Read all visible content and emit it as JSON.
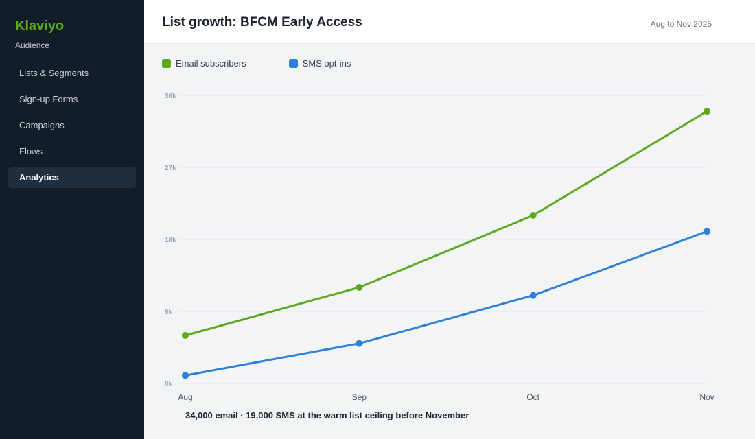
{
  "sidebar": {
    "brand": "Klaviyo",
    "subtitle": "Audience",
    "items": [
      {
        "label": "Lists & Segments",
        "active": false
      },
      {
        "label": "Sign-up Forms",
        "active": false
      },
      {
        "label": "Campaigns",
        "active": false
      },
      {
        "label": "Flows",
        "active": false
      },
      {
        "label": "Analytics",
        "active": true
      }
    ]
  },
  "header": {
    "title": "List growth: BFCM Early Access",
    "range": "Aug to Nov 2025"
  },
  "note": "34,000 email  ·  19,000 SMS at the warm list ceiling before November",
  "colors": {
    "email": "#5ca81e",
    "sms": "#2f7fd6",
    "grid": "#e3e6ea",
    "tick": "#9aa3af"
  },
  "chart_data": {
    "type": "line",
    "title": "List growth: BFCM Early Access",
    "categories": [
      "Aug",
      "Sep",
      "Oct",
      "Nov"
    ],
    "ylim": [
      0,
      36000
    ],
    "yticks": [
      0,
      9000,
      18000,
      27000,
      36000
    ],
    "ytick_labels": [
      "0k",
      "9k",
      "18k",
      "27k",
      "36k"
    ],
    "grid": true,
    "legend_position": "top-left",
    "series": [
      {
        "name": "Email subscribers",
        "color": "#5ca81e",
        "values": [
          6000,
          12000,
          21000,
          34000
        ]
      },
      {
        "name": "SMS opt-ins",
        "color": "#2f7fd6",
        "values": [
          1000,
          5000,
          11000,
          19000
        ]
      }
    ]
  }
}
